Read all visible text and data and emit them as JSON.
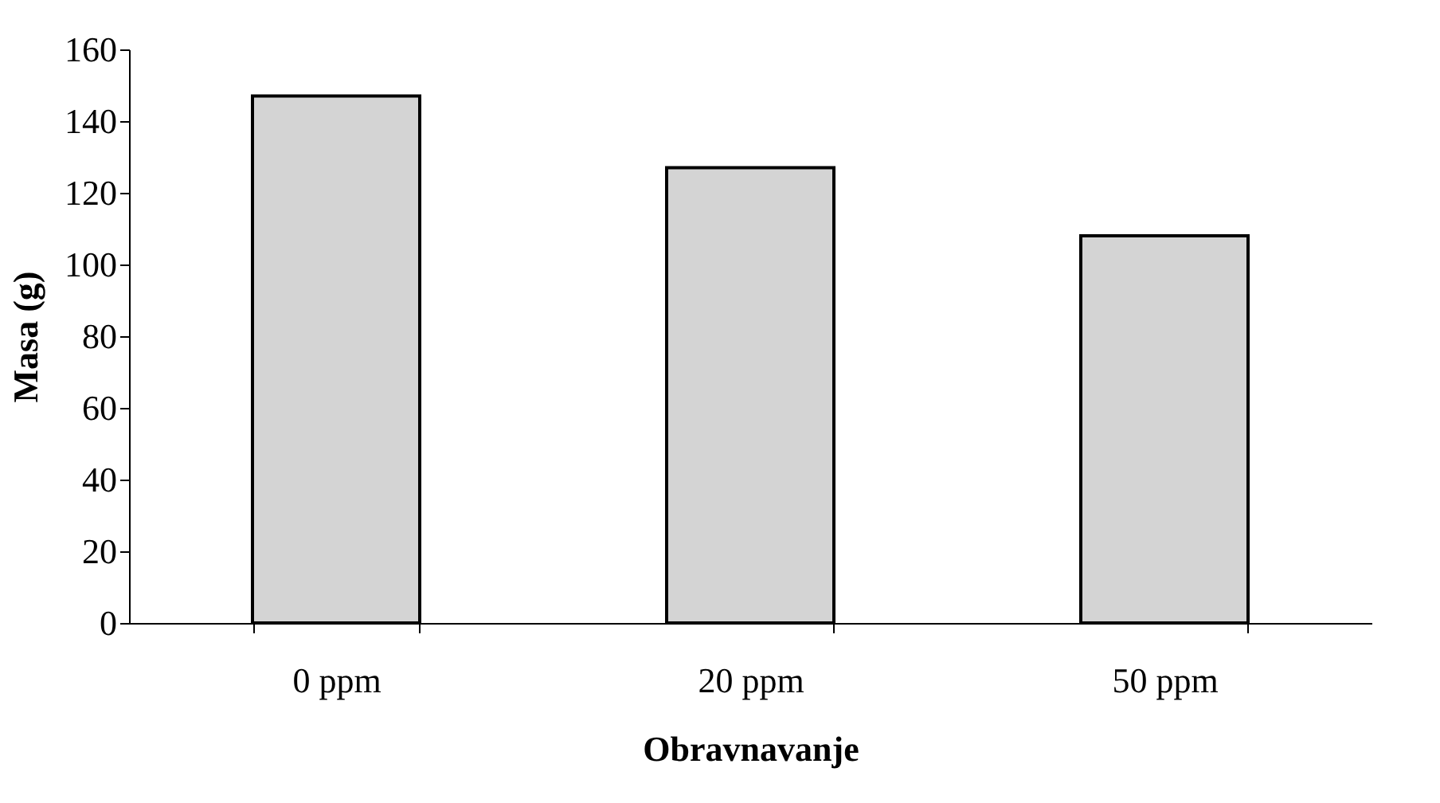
{
  "chart_data": {
    "type": "bar",
    "xlabel": "Obravnavanje",
    "ylabel": "Masa (g)",
    "categories": [
      "0 ppm",
      "20 ppm",
      "50 ppm"
    ],
    "values": [
      147,
      127,
      108
    ],
    "color": "#d4d4d4",
    "ylim": [
      0,
      160
    ],
    "yticks": [
      0,
      20,
      40,
      60,
      80,
      100,
      120,
      140,
      160
    ],
    "grid": false
  }
}
